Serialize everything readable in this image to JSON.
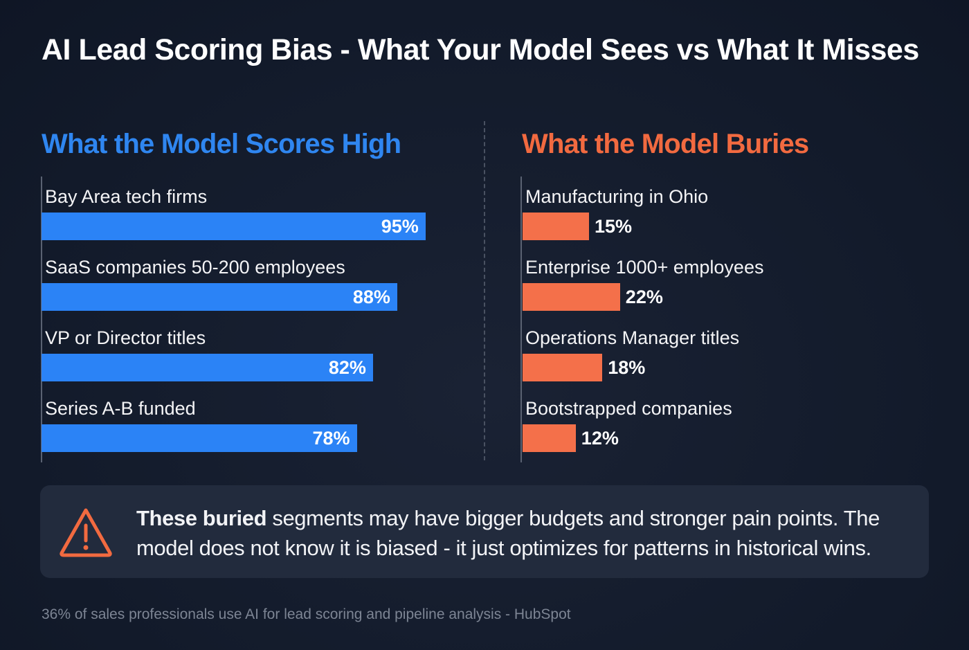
{
  "title": "AI Lead Scoring Bias - What Your Model Sees vs What It Misses",
  "chart_data": [
    {
      "type": "bar",
      "orientation": "horizontal",
      "title": "What the Model Scores High",
      "color": "#2b83f6",
      "title_color": "#2f86f0",
      "categories": [
        "Bay Area tech firms",
        "SaaS companies 50-200 employees",
        "VP or Director titles",
        "Series A-B funded"
      ],
      "values": [
        95,
        88,
        82,
        78
      ],
      "labels": [
        "95%",
        "88%",
        "82%",
        "78%"
      ],
      "unit": "%"
    },
    {
      "type": "bar",
      "orientation": "horizontal",
      "title": "What the Model Buries",
      "color": "#f4704a",
      "title_color": "#f26a40",
      "categories": [
        "Manufacturing in Ohio",
        "Enterprise 1000+ employees",
        "Operations Manager titles",
        "Bootstrapped companies"
      ],
      "values": [
        15,
        22,
        18,
        12
      ],
      "labels": [
        "15%",
        "22%",
        "18%",
        "12%"
      ],
      "unit": "%"
    }
  ],
  "callout": {
    "icon": "warning-triangle-icon",
    "bold": "These buried",
    "text": " segments may have bigger budgets and stronger pain points. The model does not know it is biased - it just optimizes for patterns in historical wins."
  },
  "footer": "36% of sales professionals use AI for lead scoring and pipeline analysis - HubSpot"
}
